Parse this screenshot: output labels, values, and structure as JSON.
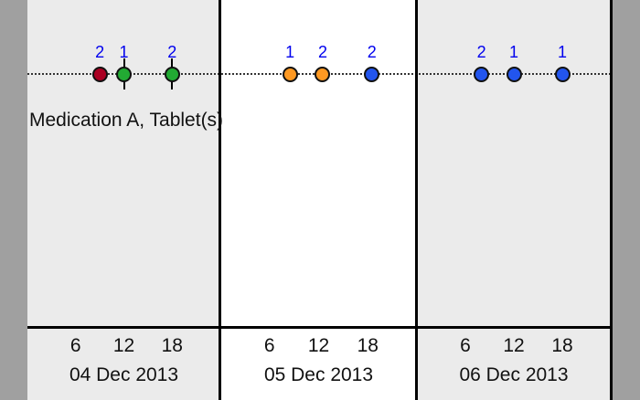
{
  "medication": {
    "label": "Medication A, Tablet(s)"
  },
  "colors": {
    "page_gray": "#a0a0a0",
    "day_light": "#ebebeb",
    "day_white": "#ffffff",
    "dose_red": "#aa0022",
    "dose_green": "#22aa33",
    "dose_orange": "#ff9922",
    "dose_blue": "#2255ee",
    "quantity_text": "#0000ee"
  },
  "days": [
    {
      "date": "04 Dec 2013",
      "shade": "day_light",
      "hours": [
        "6",
        "12",
        "18"
      ]
    },
    {
      "date": "05 Dec 2013",
      "shade": "day_white",
      "hours": [
        "6",
        "12",
        "18"
      ]
    },
    {
      "date": "06 Dec 2013",
      "shade": "day_light",
      "hours": [
        "6",
        "12",
        "18"
      ]
    }
  ],
  "doses": [
    {
      "day": 0,
      "time": "9:00",
      "quantity": "2",
      "color": "dose_red",
      "tick": false
    },
    {
      "day": 0,
      "time": "12:00",
      "quantity": "1",
      "color": "dose_green",
      "tick": true
    },
    {
      "day": 0,
      "time": "18:00",
      "quantity": "2",
      "color": "dose_green",
      "tick": true
    },
    {
      "day": 1,
      "time": "8:30",
      "quantity": "1",
      "color": "dose_orange",
      "tick": false
    },
    {
      "day": 1,
      "time": "12:30",
      "quantity": "2",
      "color": "dose_orange",
      "tick": false
    },
    {
      "day": 1,
      "time": "18:30",
      "quantity": "2",
      "color": "dose_blue",
      "tick": false
    },
    {
      "day": 2,
      "time": "8:00",
      "quantity": "2",
      "color": "dose_blue",
      "tick": false
    },
    {
      "day": 2,
      "time": "12:00",
      "quantity": "1",
      "color": "dose_blue",
      "tick": false
    },
    {
      "day": 2,
      "time": "18:00",
      "quantity": "1",
      "color": "dose_blue",
      "tick": false
    }
  ]
}
